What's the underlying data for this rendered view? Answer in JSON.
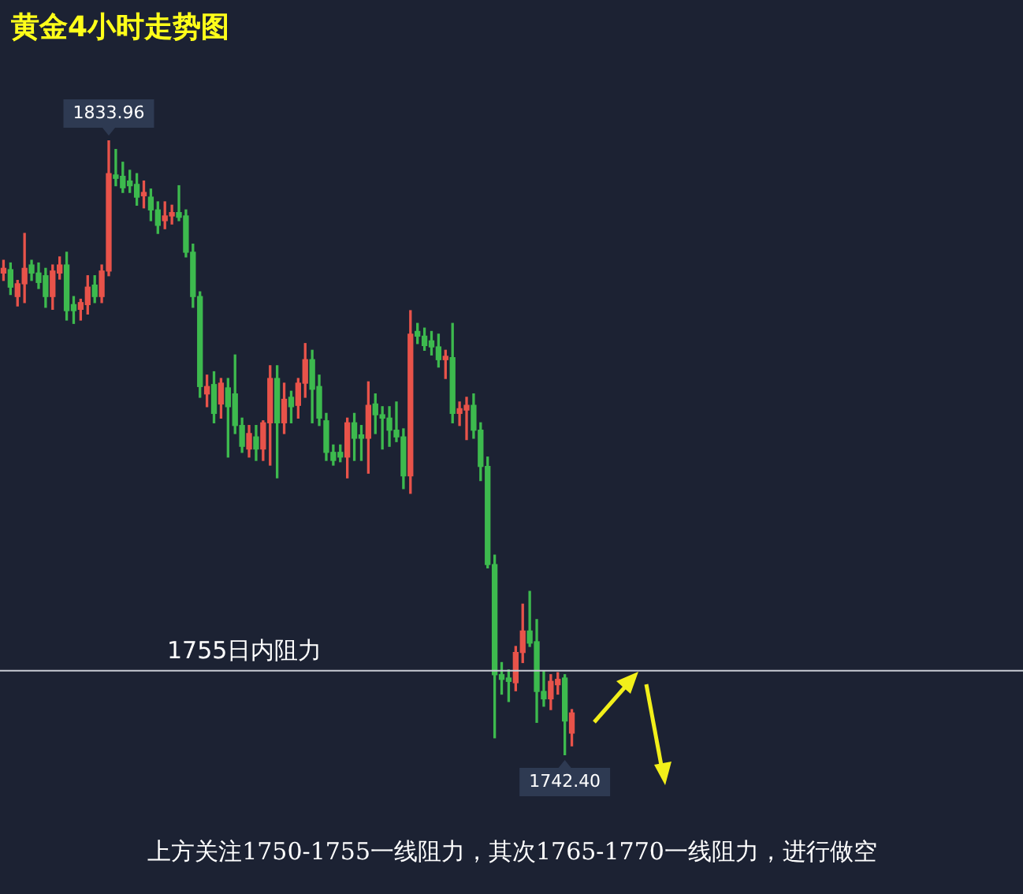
{
  "chart_data": {
    "type": "candlestick",
    "title": "黄金4小时走势图",
    "categories": [
      null,
      null,
      null,
      null,
      null,
      null,
      null,
      null,
      null,
      null,
      null,
      null,
      null,
      null,
      null,
      null,
      null,
      null,
      null,
      null,
      null,
      null,
      null,
      null,
      null,
      null,
      null,
      null,
      null,
      null,
      null,
      null,
      null,
      null,
      null,
      null,
      null,
      null,
      null,
      null,
      null,
      null,
      null,
      null,
      null,
      null,
      null,
      null,
      null,
      null,
      null,
      null,
      null,
      null,
      null,
      null,
      null,
      null,
      null,
      null,
      null,
      null,
      null,
      null,
      null,
      null,
      null,
      null,
      null,
      null,
      null,
      null,
      null,
      null,
      null,
      null,
      null,
      null,
      null,
      null,
      null,
      null
    ],
    "ohlc": [
      [
        1814.2,
        1816.1,
        1813.1,
        1814.9
      ],
      [
        1814.7,
        1815.7,
        1811.0,
        1812.1
      ],
      [
        1810.7,
        1813.1,
        1809.3,
        1812.6
      ],
      [
        1812.6,
        1820.1,
        1809.8,
        1814.9
      ],
      [
        1815.4,
        1816.1,
        1813.1,
        1814.2
      ],
      [
        1814.2,
        1815.7,
        1811.9,
        1812.8
      ],
      [
        1813.8,
        1814.9,
        1809.1,
        1810.7
      ],
      [
        1810.7,
        1815.4,
        1808.8,
        1814.5
      ],
      [
        1814.2,
        1816.6,
        1813.3,
        1815.4
      ],
      [
        1815.4,
        1817.3,
        1807.2,
        1808.6
      ],
      [
        1809.5,
        1810.7,
        1806.7,
        1808.6
      ],
      [
        1808.8,
        1810.3,
        1807.2,
        1809.8
      ],
      [
        1809.5,
        1813.8,
        1808.1,
        1812.1
      ],
      [
        1812.4,
        1813.8,
        1809.8,
        1810.7
      ],
      [
        1810.7,
        1815.4,
        1809.8,
        1814.5
      ],
      [
        1814.5,
        1833.96,
        1813.8,
        1829.0
      ],
      [
        1828.8,
        1832.6,
        1827.2,
        1828.3
      ],
      [
        1828.6,
        1830.7,
        1826.2,
        1826.9
      ],
      [
        1827.9,
        1829.5,
        1826.2,
        1827.2
      ],
      [
        1827.4,
        1829.0,
        1824.3,
        1825.5
      ],
      [
        1825.7,
        1827.9,
        1823.9,
        1826.2
      ],
      [
        1825.5,
        1826.7,
        1822.0,
        1823.6
      ],
      [
        1823.6,
        1824.8,
        1820.1,
        1821.3
      ],
      [
        1822.0,
        1824.8,
        1820.8,
        1822.7
      ],
      [
        1822.7,
        1824.3,
        1821.5,
        1823.2
      ],
      [
        1823.2,
        1827.2,
        1822.0,
        1822.5
      ],
      [
        1822.7,
        1823.6,
        1816.6,
        1817.3
      ],
      [
        1817.3,
        1818.5,
        1809.1,
        1810.7
      ],
      [
        1810.7,
        1811.4,
        1795.7,
        1797.3
      ],
      [
        1796.2,
        1799.0,
        1794.3,
        1797.3
      ],
      [
        1797.6,
        1799.5,
        1791.9,
        1793.3
      ],
      [
        1794.7,
        1798.5,
        1792.6,
        1797.8
      ],
      [
        1797.1,
        1798.5,
        1786.8,
        1794.3
      ],
      [
        1796.2,
        1802.0,
        1790.3,
        1791.5
      ],
      [
        1791.5,
        1792.6,
        1787.5,
        1788.4
      ],
      [
        1788.0,
        1791.5,
        1786.8,
        1790.3
      ],
      [
        1789.8,
        1791.5,
        1786.3,
        1788.0
      ],
      [
        1788.0,
        1792.2,
        1786.3,
        1791.9
      ],
      [
        1791.9,
        1800.4,
        1785.6,
        1798.5
      ],
      [
        1798.5,
        1800.4,
        1783.7,
        1791.9
      ],
      [
        1791.9,
        1797.8,
        1790.3,
        1795.4
      ],
      [
        1795.7,
        1796.6,
        1791.9,
        1794.3
      ],
      [
        1794.5,
        1798.5,
        1792.6,
        1797.8
      ],
      [
        1797.8,
        1803.7,
        1795.7,
        1801.3
      ],
      [
        1801.3,
        1802.7,
        1791.9,
        1796.9
      ],
      [
        1797.3,
        1799.0,
        1791.5,
        1792.6
      ],
      [
        1792.2,
        1793.3,
        1786.3,
        1787.5
      ],
      [
        1787.5,
        1788.6,
        1785.6,
        1786.3
      ],
      [
        1787.5,
        1788.6,
        1786.1,
        1786.8
      ],
      [
        1786.8,
        1792.6,
        1783.7,
        1791.9
      ],
      [
        1791.9,
        1793.3,
        1786.3,
        1789.6
      ],
      [
        1790.1,
        1791.5,
        1786.3,
        1789.6
      ],
      [
        1789.6,
        1798.0,
        1784.4,
        1794.5
      ],
      [
        1794.7,
        1796.2,
        1790.3,
        1793.1
      ],
      [
        1793.1,
        1794.3,
        1788.0,
        1792.6
      ],
      [
        1792.6,
        1794.3,
        1788.4,
        1790.8
      ],
      [
        1790.8,
        1795.0,
        1789.1,
        1789.8
      ],
      [
        1789.8,
        1791.0,
        1782.1,
        1784.0
      ],
      [
        1784.0,
        1808.6,
        1781.4,
        1805.1
      ],
      [
        1805.5,
        1806.7,
        1803.7,
        1804.8
      ],
      [
        1804.8,
        1806.0,
        1802.7,
        1803.4
      ],
      [
        1804.1,
        1805.5,
        1802.0,
        1803.2
      ],
      [
        1803.2,
        1805.1,
        1800.2,
        1801.3
      ],
      [
        1801.3,
        1802.7,
        1798.5,
        1801.8
      ],
      [
        1801.6,
        1806.7,
        1791.9,
        1793.3
      ],
      [
        1793.3,
        1795.0,
        1791.5,
        1794.0
      ],
      [
        1793.8,
        1795.7,
        1789.4,
        1794.5
      ],
      [
        1794.5,
        1796.2,
        1789.6,
        1790.8
      ],
      [
        1790.8,
        1791.9,
        1783.3,
        1785.4
      ],
      [
        1785.4,
        1786.8,
        1770.3,
        1770.8
      ],
      [
        1770.8,
        1772.2,
        1745.0,
        1754.4
      ],
      [
        1754.4,
        1756.2,
        1751.5,
        1753.7
      ],
      [
        1753.9,
        1755.1,
        1750.4,
        1753.4
      ],
      [
        1753.2,
        1758.6,
        1752.0,
        1757.7
      ],
      [
        1757.7,
        1764.9,
        1756.2,
        1760.9
      ],
      [
        1760.9,
        1766.8,
        1758.6,
        1759.1
      ],
      [
        1759.3,
        1762.6,
        1747.3,
        1751.9
      ],
      [
        1751.9,
        1754.9,
        1749.7,
        1750.8
      ],
      [
        1750.8,
        1754.4,
        1749.2,
        1753.4
      ],
      [
        1752.9,
        1754.7,
        1751.5,
        1753.7
      ],
      [
        1753.9,
        1754.4,
        1742.4,
        1747.5
      ],
      [
        1745.7,
        1749.2,
        1743.8,
        1748.7
      ]
    ],
    "colors": [
      "#e8534a",
      "#3dba4e",
      "#e8534a",
      "#e8534a",
      "#3dba4e",
      "#3dba4e",
      "#3dba4e",
      "#e8534a",
      "#e8534a",
      "#3dba4e",
      "#3dba4e",
      "#e8534a",
      "#e8534a",
      "#3dba4e",
      "#e8534a",
      "#e8534a",
      "#3dba4e",
      "#3dba4e",
      "#3dba4e",
      "#3dba4e",
      "#e8534a",
      "#3dba4e",
      "#3dba4e",
      "#e8534a",
      "#e8534a",
      "#3dba4e",
      "#3dba4e",
      "#3dba4e",
      "#3dba4e",
      "#e8534a",
      "#3dba4e",
      "#e8534a",
      "#3dba4e",
      "#3dba4e",
      "#3dba4e",
      "#e8534a",
      "#3dba4e",
      "#e8534a",
      "#e8534a",
      "#3dba4e",
      "#e8534a",
      "#3dba4e",
      "#e8534a",
      "#e8534a",
      "#3dba4e",
      "#3dba4e",
      "#3dba4e",
      "#3dba4e",
      "#3dba4e",
      "#e8534a",
      "#3dba4e",
      "#3dba4e",
      "#e8534a",
      "#3dba4e",
      "#3dba4e",
      "#3dba4e",
      "#3dba4e",
      "#3dba4e",
      "#e8534a",
      "#3dba4e",
      "#3dba4e",
      "#3dba4e",
      "#3dba4e",
      "#e8534a",
      "#3dba4e",
      "#e8534a",
      "#e8534a",
      "#3dba4e",
      "#3dba4e",
      "#3dba4e",
      "#3dba4e",
      "#3dba4e",
      "#3dba4e",
      "#e8534a",
      "#e8534a",
      "#3dba4e",
      "#3dba4e",
      "#3dba4e",
      "#e8534a",
      "#e8534a",
      "#3dba4e",
      "#e8534a"
    ],
    "ref_lines": [
      {
        "axis": "y",
        "value": 1755,
        "label": "1755日内阻力",
        "color": "#c8ccd4"
      }
    ],
    "annotations": [
      {
        "text": "1833.96",
        "y": 1833.96
      },
      {
        "text": "1742.40",
        "y": 1742.4
      },
      "上方关注1750-1755一线阻力，其次1765-1770一线阻力，进行做空"
    ],
    "legend": false,
    "grid": false,
    "tick_labels": false
  }
}
